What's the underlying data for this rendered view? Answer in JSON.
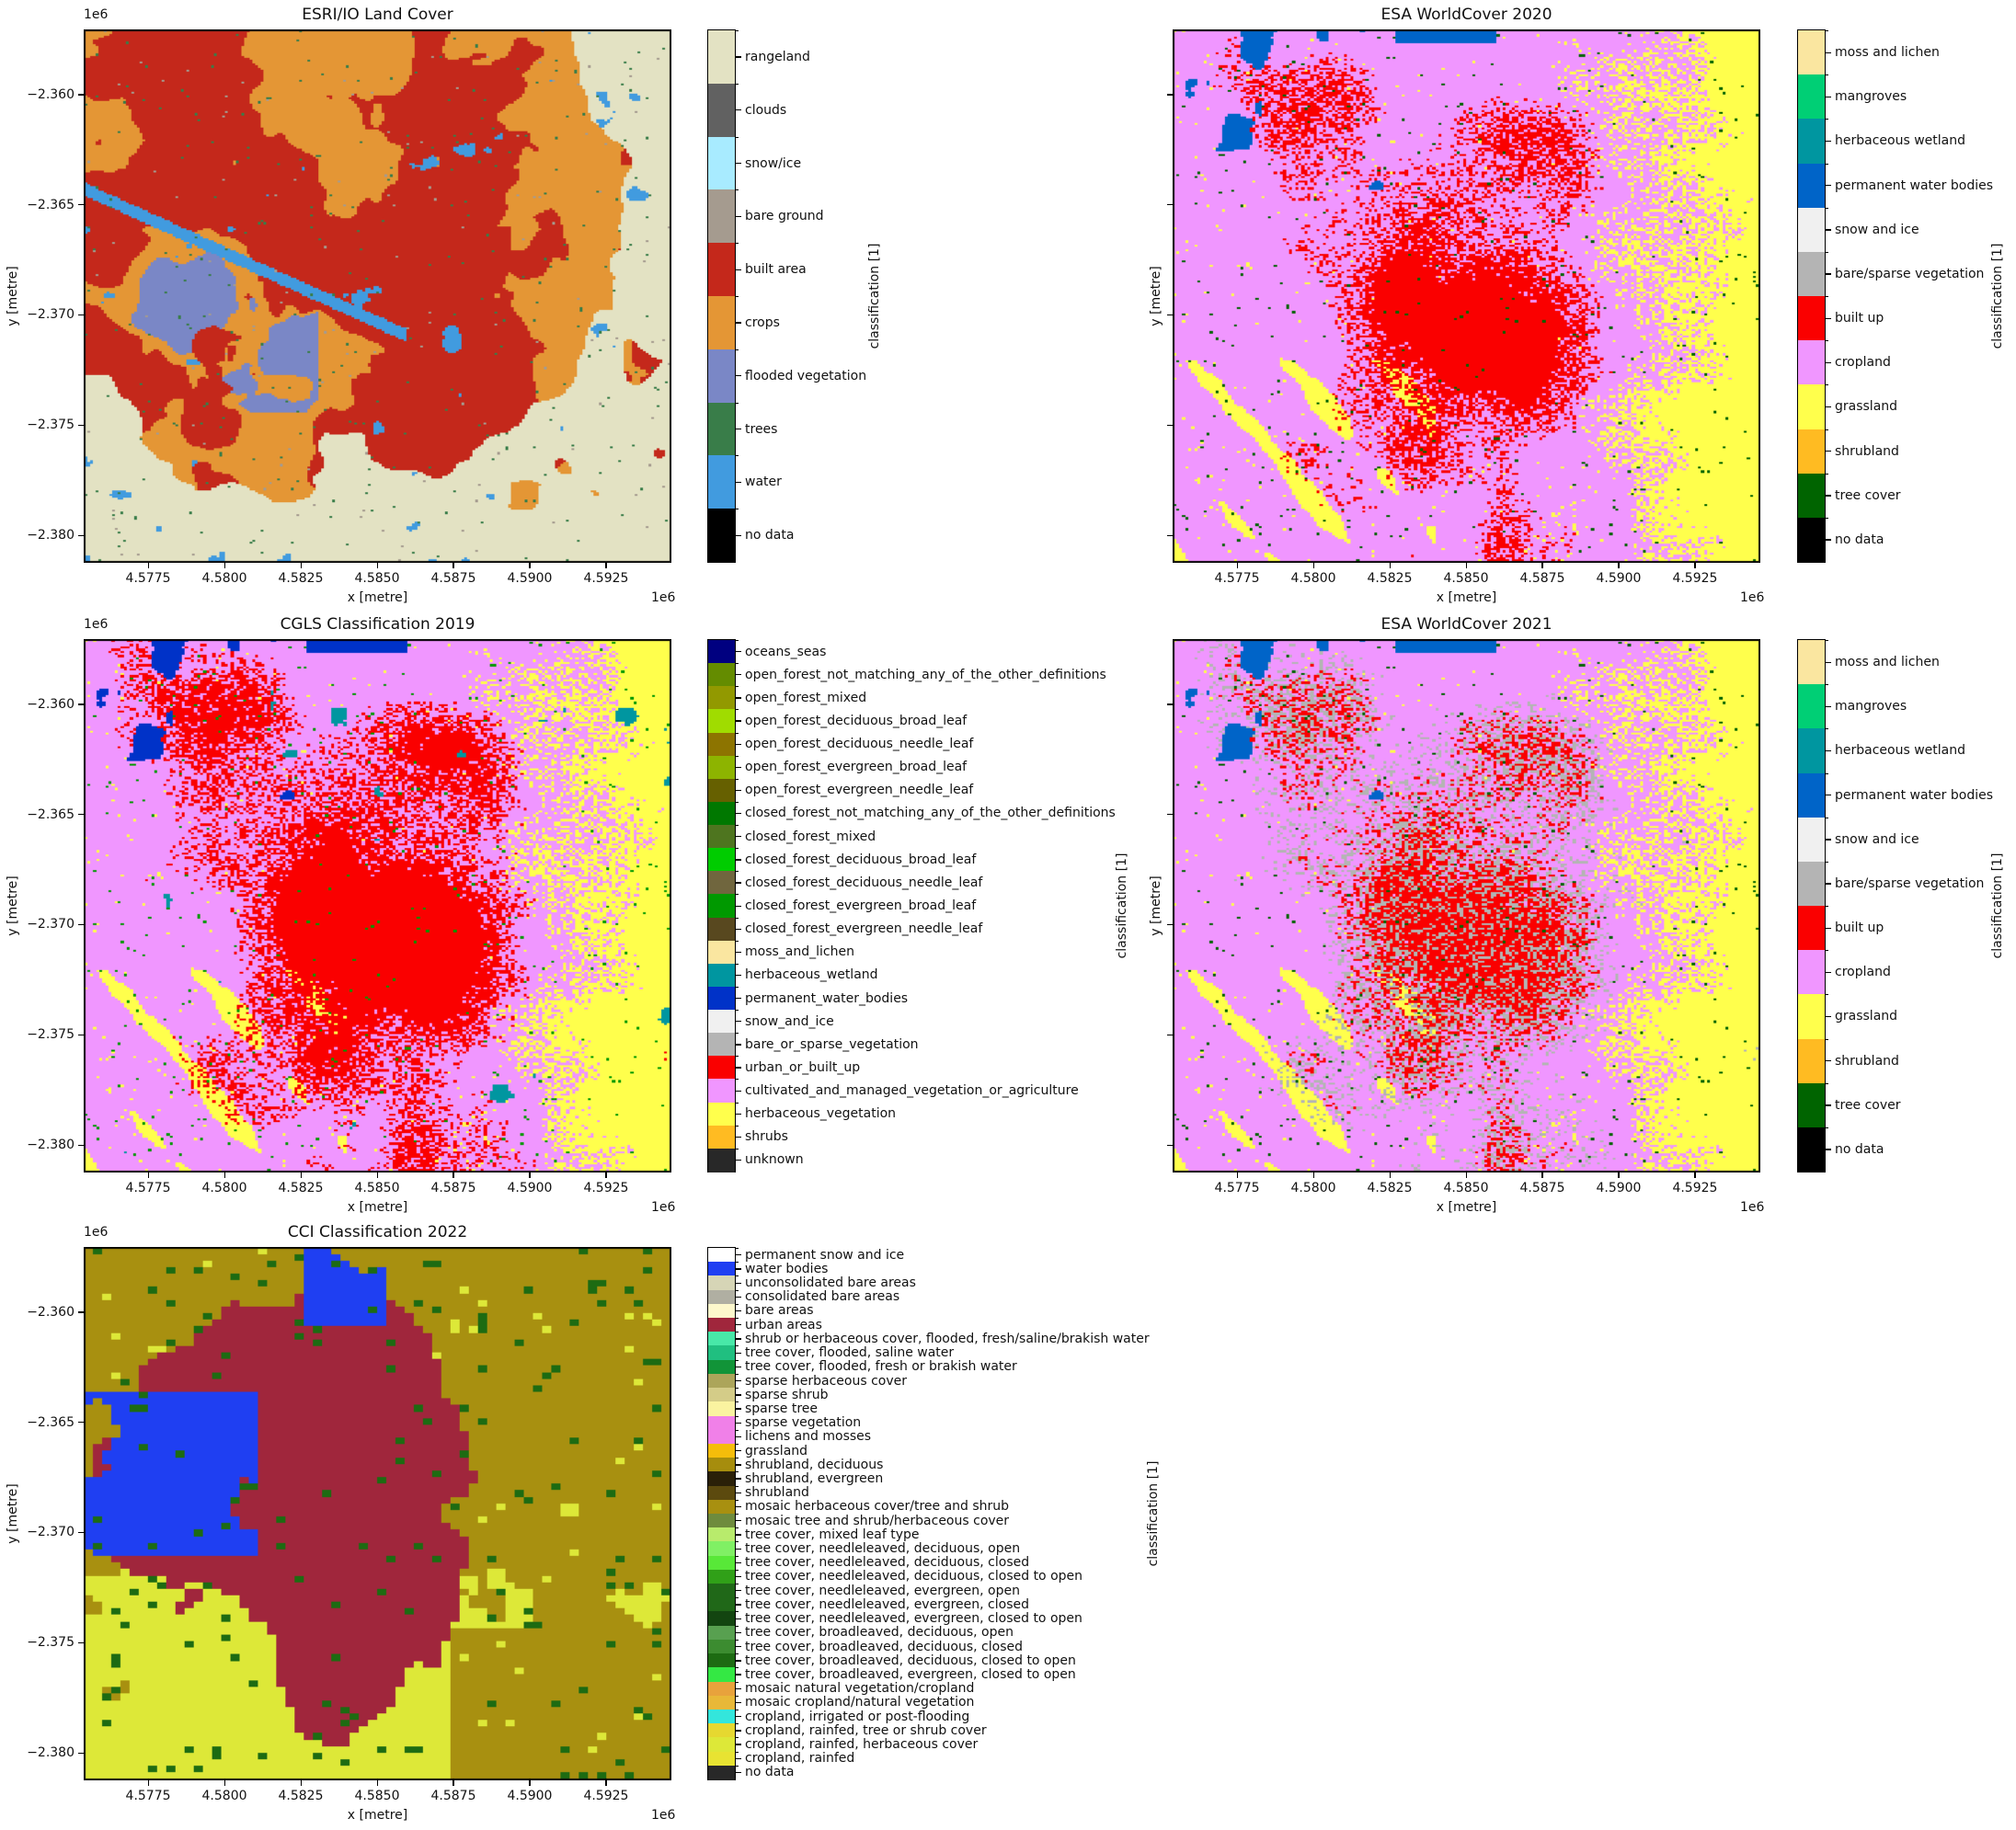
{
  "figure": {
    "panels": [
      {
        "title": "ESRI/IO Land Cover",
        "xlabel": "x [metre]",
        "ylabel": "y [metre]",
        "colorbar_label": "classification [1]",
        "x_offset": "1e6",
        "y_offset": "1e6",
        "show_ytick_labels": true,
        "legend": [
          {
            "label": "rangeland",
            "color": "#e3e2c3"
          },
          {
            "label": "clouds",
            "color": "#616161"
          },
          {
            "label": "snow/ice",
            "color": "#a8ebff"
          },
          {
            "label": "bare ground",
            "color": "#a59b8f"
          },
          {
            "label": "built area",
            "color": "#c4281b"
          },
          {
            "label": "crops",
            "color": "#e49635"
          },
          {
            "label": "flooded vegetation",
            "color": "#7a87c6"
          },
          {
            "label": "trees",
            "color": "#397d49"
          },
          {
            "label": "water",
            "color": "#419bdf"
          },
          {
            "label": "no data",
            "color": "#000000"
          }
        ]
      },
      {
        "title": "ESA WorldCover 2020",
        "xlabel": "x [metre]",
        "ylabel": "y [metre]",
        "colorbar_label": "classification [1]",
        "x_offset": "1e6",
        "y_offset": "",
        "show_ytick_labels": false,
        "legend": [
          {
            "label": "moss and lichen",
            "color": "#fae6a0"
          },
          {
            "label": "mangroves",
            "color": "#00cf75"
          },
          {
            "label": "herbaceous wetland",
            "color": "#0096a0"
          },
          {
            "label": "permanent water bodies",
            "color": "#0064c8"
          },
          {
            "label": "snow and ice",
            "color": "#f0f0f0"
          },
          {
            "label": "bare/sparse vegetation",
            "color": "#b4b4b4"
          },
          {
            "label": "built up",
            "color": "#fa0000"
          },
          {
            "label": "cropland",
            "color": "#f096ff"
          },
          {
            "label": "grassland",
            "color": "#ffff4c"
          },
          {
            "label": "shrubland",
            "color": "#ffbb22"
          },
          {
            "label": "tree cover",
            "color": "#006400"
          },
          {
            "label": "no data",
            "color": "#000000"
          }
        ]
      },
      {
        "title": "CGLS Classification 2019",
        "xlabel": "x [metre]",
        "ylabel": "y [metre]",
        "colorbar_label": "classification [1]",
        "x_offset": "1e6",
        "y_offset": "1e6",
        "show_ytick_labels": true,
        "legend": [
          {
            "label": "oceans_seas",
            "color": "#000080"
          },
          {
            "label": "open_forest_not_matching_any_of_the_other_definitions",
            "color": "#648c00"
          },
          {
            "label": "open_forest_mixed",
            "color": "#929900"
          },
          {
            "label": "open_forest_deciduous_broad_leaf",
            "color": "#a0dc00"
          },
          {
            "label": "open_forest_deciduous_needle_leaf",
            "color": "#8d7400"
          },
          {
            "label": "open_forest_evergreen_broad_leaf",
            "color": "#8db400"
          },
          {
            "label": "open_forest_evergreen_needle_leaf",
            "color": "#666000"
          },
          {
            "label": "closed_forest_not_matching_any_of_the_other_definitions",
            "color": "#007800"
          },
          {
            "label": "closed_forest_mixed",
            "color": "#4e751f"
          },
          {
            "label": "closed_forest_deciduous_broad_leaf",
            "color": "#00cc00"
          },
          {
            "label": "closed_forest_deciduous_needle_leaf",
            "color": "#70663e"
          },
          {
            "label": "closed_forest_evergreen_broad_leaf",
            "color": "#009900"
          },
          {
            "label": "closed_forest_evergreen_needle_leaf",
            "color": "#58481f"
          },
          {
            "label": "moss_and_lichen",
            "color": "#fae6a0"
          },
          {
            "label": "herbaceous_wetland",
            "color": "#0096a0"
          },
          {
            "label": "permanent_water_bodies",
            "color": "#0032c8"
          },
          {
            "label": "snow_and_ice",
            "color": "#f0f0f0"
          },
          {
            "label": "bare_or_sparse_vegetation",
            "color": "#b4b4b4"
          },
          {
            "label": "urban_or_built_up",
            "color": "#fa0000"
          },
          {
            "label": "cultivated_and_managed_vegetation_or_agriculture",
            "color": "#f096ff"
          },
          {
            "label": "herbaceous_vegetation",
            "color": "#ffff4c"
          },
          {
            "label": "shrubs",
            "color": "#ffbb22"
          },
          {
            "label": "unknown",
            "color": "#282828"
          }
        ]
      },
      {
        "title": "ESA WorldCover 2021",
        "xlabel": "x [metre]",
        "ylabel": "y [metre]",
        "colorbar_label": "classification [1]",
        "x_offset": "1e6",
        "y_offset": "",
        "show_ytick_labels": false,
        "legend": [
          {
            "label": "moss and lichen",
            "color": "#fae6a0"
          },
          {
            "label": "mangroves",
            "color": "#00cf75"
          },
          {
            "label": "herbaceous wetland",
            "color": "#0096a0"
          },
          {
            "label": "permanent water bodies",
            "color": "#0064c8"
          },
          {
            "label": "snow and ice",
            "color": "#f0f0f0"
          },
          {
            "label": "bare/sparse vegetation",
            "color": "#b4b4b4"
          },
          {
            "label": "built up",
            "color": "#fa0000"
          },
          {
            "label": "cropland",
            "color": "#f096ff"
          },
          {
            "label": "grassland",
            "color": "#ffff4c"
          },
          {
            "label": "shrubland",
            "color": "#ffbb22"
          },
          {
            "label": "tree cover",
            "color": "#006400"
          },
          {
            "label": "no data",
            "color": "#000000"
          }
        ]
      },
      {
        "title": "CCI Classification 2022",
        "xlabel": "x [metre]",
        "ylabel": "y [metre]",
        "colorbar_label": "classification [1]",
        "x_offset": "1e6",
        "y_offset": "1e6",
        "show_ytick_labels": true,
        "legend": [
          {
            "label": "permanent snow and ice",
            "color": "#ffffff"
          },
          {
            "label": "water bodies",
            "color": "#1f3ff2"
          },
          {
            "label": "unconsolidated bare areas",
            "color": "#d6d5b6"
          },
          {
            "label": "consolidated bare areas",
            "color": "#b0afa2"
          },
          {
            "label": "bare areas",
            "color": "#fdf8cc"
          },
          {
            "label": "urban areas",
            "color": "#a0263c"
          },
          {
            "label": "shrub or herbaceous cover, flooded, fresh/saline/brakish water",
            "color": "#48e8a8"
          },
          {
            "label": "tree cover, flooded, saline water",
            "color": "#20bf80"
          },
          {
            "label": "tree cover, flooded, fresh or brakish water",
            "color": "#119438"
          },
          {
            "label": "sparse herbaceous cover",
            "color": "#aca55a"
          },
          {
            "label": "sparse shrub",
            "color": "#d4cc88"
          },
          {
            "label": "sparse tree",
            "color": "#faf3a0"
          },
          {
            "label": "sparse vegetation",
            "color": "#f080e8"
          },
          {
            "label": "lichens and mosses",
            "color": "#f080e8"
          },
          {
            "label": "grassland",
            "color": "#f5bd0a"
          },
          {
            "label": "shrubland, deciduous",
            "color": "#a68d0d"
          },
          {
            "label": "shrubland, evergreen",
            "color": "#2a2008"
          },
          {
            "label": "shrubland",
            "color": "#5c4a0e"
          },
          {
            "label": "mosaic herbaceous cover/tree and shrub",
            "color": "#a89010"
          },
          {
            "label": "mosaic tree and shrub/herbaceous cover",
            "color": "#6e8b3d"
          },
          {
            "label": "tree cover, mixed leaf type",
            "color": "#b8eb6c"
          },
          {
            "label": "tree cover, needleleaved, deciduous, open",
            "color": "#80f064"
          },
          {
            "label": "tree cover, needleleaved, deciduous, closed",
            "color": "#58e838"
          },
          {
            "label": "tree cover, needleleaved, deciduous, closed to open",
            "color": "#30a018"
          },
          {
            "label": "tree cover, needleleaved, evergreen, open",
            "color": "#206818"
          },
          {
            "label": "tree cover, needleleaved, evergreen, closed",
            "color": "#206818"
          },
          {
            "label": "tree cover, needleleaved, evergreen, closed to open",
            "color": "#134510"
          },
          {
            "label": "tree cover, broadleaved, deciduous, open",
            "color": "#58a050"
          },
          {
            "label": "tree cover, broadleaved, deciduous, closed",
            "color": "#3c8c30"
          },
          {
            "label": "tree cover, broadleaved, deciduous, closed to open",
            "color": "#1d6b12"
          },
          {
            "label": "tree cover, broadleaved, evergreen, closed to open",
            "color": "#34e844"
          },
          {
            "label": "mosaic natural vegetation/cropland",
            "color": "#e8a23c"
          },
          {
            "label": "mosaic cropland/natural vegetation",
            "color": "#e8b838"
          },
          {
            "label": "cropland, irrigated or post-flooding",
            "color": "#33e6dc"
          },
          {
            "label": "cropland, rainfed, tree or shrub cover",
            "color": "#e6d830"
          },
          {
            "label": "cropland, rainfed, herbaceous cover",
            "color": "#dde838"
          },
          {
            "label": "cropland, rainfed",
            "color": "#e8e332"
          },
          {
            "label": "no data",
            "color": "#282828"
          }
        ]
      }
    ],
    "x_ticks": [
      "4.5775",
      "4.5800",
      "4.5825",
      "4.5850",
      "4.5875",
      "4.5900",
      "4.5925"
    ],
    "x_tick_values": [
      4577500,
      4580000,
      4582500,
      4585000,
      4587500,
      4590000,
      4592500
    ],
    "y_ticks": [
      "−2.360",
      "−2.365",
      "−2.370",
      "−2.375",
      "−2.380"
    ],
    "y_tick_values": [
      -2360000,
      -2365000,
      -2370000,
      -2375000,
      -2380000
    ],
    "xlim": [
      4575390,
      4594640
    ],
    "ylim": [
      -2381250,
      -2357040
    ]
  }
}
